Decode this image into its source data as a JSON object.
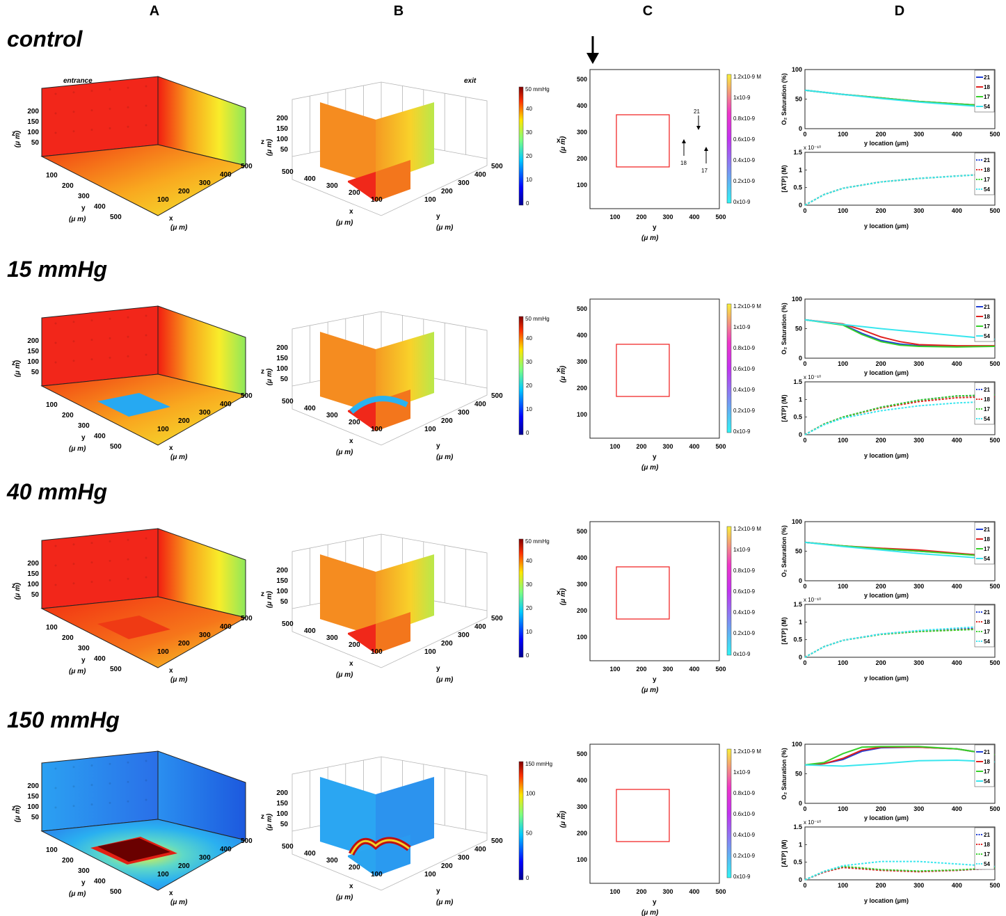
{
  "columns": [
    "A",
    "B",
    "C",
    "D"
  ],
  "rows": [
    {
      "label": "control",
      "stimulus": "none",
      "po2_cbar": {
        "max_label": "50 mmHg",
        "ticks": [
          "40",
          "30",
          "20",
          "10",
          "0"
        ]
      }
    },
    {
      "label": "15 mmHg",
      "stimulus": "low",
      "po2_cbar": {
        "max_label": "50 mmHg",
        "ticks": [
          "40",
          "30",
          "20",
          "10",
          "0"
        ]
      }
    },
    {
      "label": "40 mmHg",
      "stimulus": "mid",
      "po2_cbar": {
        "max_label": "50 mmHg",
        "ticks": [
          "40",
          "30",
          "20",
          "10",
          "0"
        ]
      }
    },
    {
      "label": "150 mmHg",
      "stimulus": "high",
      "po2_cbar": {
        "max_label": "150 mmHg",
        "ticks": [
          "100",
          "50",
          "0"
        ]
      }
    }
  ],
  "panel_a": {
    "entrance_label": "entrance",
    "z_ticks": [
      "200",
      "150",
      "100",
      "50"
    ],
    "y_ticks": [
      "100",
      "200",
      "300",
      "400",
      "500"
    ],
    "x_ticks": [
      "100",
      "200",
      "300",
      "400",
      "500"
    ],
    "z_label": "z",
    "y_label": "y",
    "x_label": "x",
    "unit_label": "(μ m)"
  },
  "panel_b": {
    "exit_label": "exit",
    "z_ticks": [
      "200",
      "150",
      "100",
      "50"
    ],
    "x_ticks": [
      "500",
      "400",
      "300",
      "200",
      "100"
    ],
    "y_ticks": [
      "100",
      "200",
      "300",
      "400",
      "500"
    ],
    "z_label": "z",
    "x_label": "x",
    "y_label": "y",
    "unit_label": "(μ m)"
  },
  "panel_c": {
    "x_ticks": [
      "500",
      "400",
      "300",
      "200",
      "100"
    ],
    "y_ticks": [
      "100",
      "200",
      "300",
      "400",
      "500"
    ],
    "x_label": "x",
    "y_label": "y",
    "unit_label": "(μ m)",
    "cbar_ticks": [
      "1.2x10-9 M",
      "1x10-9",
      "0.8x10-9",
      "0.6x10-9",
      "0.4x10-9",
      "0.2x10-9",
      "0x10-9"
    ],
    "vessel_labels": [
      "21",
      "18",
      "17"
    ]
  },
  "panel_d": {
    "o2_ylabel": "O₂ Saturation (%)",
    "atp_ylabel": "[ATP] (M)",
    "xlabel": "y location (μm)",
    "exponent": "x 10⁻¹⁰",
    "legend": [
      "21",
      "18",
      "17",
      "54"
    ],
    "o2_yticks": [
      "100",
      "50",
      "0"
    ],
    "atp_yticks": [
      "1.5",
      "1",
      "0.5",
      "0"
    ],
    "xticks": [
      "0",
      "100",
      "200",
      "300",
      "400",
      "500"
    ]
  },
  "chart_data": [
    {
      "type": "line",
      "title": "control — O₂ Saturation",
      "xlabel": "y location (μm)",
      "ylabel": "O₂ Saturation (%)",
      "xlim": [
        0,
        500
      ],
      "ylim": [
        0,
        100
      ],
      "series": [
        {
          "name": "21",
          "color": "#1f3fd6",
          "x": [
            0,
            100,
            200,
            300,
            450
          ],
          "y": [
            65,
            58,
            52,
            46,
            40
          ]
        },
        {
          "name": "18",
          "color": "#e0201e",
          "x": [
            0,
            100,
            200,
            300,
            450
          ],
          "y": [
            65,
            58,
            52,
            46,
            40
          ]
        },
        {
          "name": "17",
          "color": "#36d02a",
          "x": [
            0,
            100,
            200,
            300,
            450
          ],
          "y": [
            65,
            58,
            52,
            46,
            40
          ]
        },
        {
          "name": "54",
          "color": "#38e6ee",
          "x": [
            0,
            100,
            200,
            300,
            450
          ],
          "y": [
            65,
            58,
            51,
            45,
            38
          ]
        }
      ]
    },
    {
      "type": "line",
      "title": "control — [ATP]",
      "xlabel": "y location (μm)",
      "ylabel": "[ATP] (M)",
      "xlim": [
        0,
        500
      ],
      "ylim": [
        0,
        1.5
      ],
      "series": [
        {
          "name": "21",
          "color": "#1f3fd6",
          "x": [
            0,
            50,
            100,
            200,
            300,
            450
          ],
          "y": [
            0,
            0.3,
            0.48,
            0.66,
            0.76,
            0.86
          ]
        },
        {
          "name": "18",
          "color": "#e0201e",
          "x": [
            0,
            50,
            100,
            200,
            300,
            450
          ],
          "y": [
            0,
            0.3,
            0.48,
            0.66,
            0.76,
            0.86
          ]
        },
        {
          "name": "17",
          "color": "#36d02a",
          "x": [
            0,
            50,
            100,
            200,
            300,
            450
          ],
          "y": [
            0,
            0.3,
            0.48,
            0.66,
            0.76,
            0.86
          ]
        },
        {
          "name": "54",
          "color": "#38e6ee",
          "x": [
            0,
            50,
            100,
            200,
            300,
            450
          ],
          "y": [
            0,
            0.3,
            0.48,
            0.66,
            0.76,
            0.86
          ]
        }
      ]
    },
    {
      "type": "line",
      "title": "15 mmHg — O₂ Saturation",
      "xlabel": "y location (μm)",
      "ylabel": "O₂ Saturation (%)",
      "xlim": [
        0,
        500
      ],
      "ylim": [
        0,
        100
      ],
      "series": [
        {
          "name": "21",
          "color": "#1f3fd6",
          "x": [
            0,
            100,
            150,
            200,
            250,
            300,
            400,
            500
          ],
          "y": [
            65,
            57,
            42,
            30,
            24,
            21,
            20,
            20
          ]
        },
        {
          "name": "18",
          "color": "#e0201e",
          "x": [
            0,
            100,
            150,
            200,
            250,
            300,
            400,
            500
          ],
          "y": [
            65,
            58,
            48,
            36,
            28,
            23,
            21,
            21
          ]
        },
        {
          "name": "17",
          "color": "#36d02a",
          "x": [
            0,
            100,
            150,
            200,
            250,
            300,
            400,
            500
          ],
          "y": [
            65,
            56,
            40,
            28,
            22,
            20,
            19,
            20
          ]
        },
        {
          "name": "54",
          "color": "#38e6ee",
          "x": [
            0,
            100,
            200,
            300,
            400,
            500
          ],
          "y": [
            65,
            57,
            50,
            44,
            38,
            32
          ]
        }
      ]
    },
    {
      "type": "line",
      "title": "15 mmHg — [ATP]",
      "xlabel": "y location (μm)",
      "ylabel": "[ATP] (M)",
      "xlim": [
        0,
        500
      ],
      "ylim": [
        0,
        1.5
      ],
      "series": [
        {
          "name": "21",
          "color": "#1f3fd6",
          "x": [
            0,
            50,
            100,
            200,
            300,
            400,
            500
          ],
          "y": [
            0,
            0.3,
            0.5,
            0.78,
            0.98,
            1.1,
            1.12
          ]
        },
        {
          "name": "18",
          "color": "#e0201e",
          "x": [
            0,
            50,
            100,
            200,
            300,
            400,
            500
          ],
          "y": [
            0,
            0.3,
            0.5,
            0.76,
            0.94,
            1.05,
            1.08
          ]
        },
        {
          "name": "17",
          "color": "#36d02a",
          "x": [
            0,
            50,
            100,
            200,
            300,
            400,
            500
          ],
          "y": [
            0,
            0.3,
            0.5,
            0.78,
            0.98,
            1.1,
            1.13
          ]
        },
        {
          "name": "54",
          "color": "#38e6ee",
          "x": [
            0,
            50,
            100,
            200,
            300,
            400,
            500
          ],
          "y": [
            0,
            0.28,
            0.47,
            0.68,
            0.82,
            0.9,
            0.95
          ]
        }
      ]
    },
    {
      "type": "line",
      "title": "40 mmHg — O₂ Saturation",
      "xlabel": "y location (μm)",
      "ylabel": "O₂ Saturation (%)",
      "xlim": [
        0,
        500
      ],
      "ylim": [
        0,
        100
      ],
      "series": [
        {
          "name": "21",
          "color": "#1f3fd6",
          "x": [
            0,
            100,
            200,
            300,
            450
          ],
          "y": [
            65,
            59,
            54,
            50,
            44
          ]
        },
        {
          "name": "18",
          "color": "#e0201e",
          "x": [
            0,
            100,
            200,
            300,
            450
          ],
          "y": [
            65,
            59,
            55,
            52,
            44
          ]
        },
        {
          "name": "17",
          "color": "#36d02a",
          "x": [
            0,
            100,
            200,
            300,
            450
          ],
          "y": [
            65,
            59,
            54,
            50,
            43
          ]
        },
        {
          "name": "54",
          "color": "#38e6ee",
          "x": [
            0,
            100,
            200,
            300,
            450
          ],
          "y": [
            65,
            58,
            52,
            46,
            39
          ]
        }
      ]
    },
    {
      "type": "line",
      "title": "40 mmHg — [ATP]",
      "xlabel": "y location (μm)",
      "ylabel": "[ATP] (M)",
      "xlim": [
        0,
        500
      ],
      "ylim": [
        0,
        1.5
      ],
      "series": [
        {
          "name": "21",
          "color": "#1f3fd6",
          "x": [
            0,
            50,
            100,
            200,
            300,
            450
          ],
          "y": [
            0,
            0.3,
            0.48,
            0.66,
            0.75,
            0.82
          ]
        },
        {
          "name": "18",
          "color": "#e0201e",
          "x": [
            0,
            50,
            100,
            200,
            300,
            450
          ],
          "y": [
            0,
            0.3,
            0.48,
            0.65,
            0.73,
            0.8
          ]
        },
        {
          "name": "17",
          "color": "#36d02a",
          "x": [
            0,
            50,
            100,
            200,
            300,
            450
          ],
          "y": [
            0,
            0.3,
            0.48,
            0.65,
            0.73,
            0.79
          ]
        },
        {
          "name": "54",
          "color": "#38e6ee",
          "x": [
            0,
            50,
            100,
            200,
            300,
            450
          ],
          "y": [
            0,
            0.3,
            0.48,
            0.66,
            0.76,
            0.86
          ]
        }
      ]
    },
    {
      "type": "line",
      "title": "150 mmHg — O₂ Saturation",
      "xlabel": "y location (μm)",
      "ylabel": "O₂ Saturation (%)",
      "xlim": [
        0,
        500
      ],
      "ylim": [
        0,
        100
      ],
      "series": [
        {
          "name": "21",
          "color": "#1f3fd6",
          "x": [
            0,
            50,
            100,
            150,
            200,
            300,
            400,
            500
          ],
          "y": [
            65,
            67,
            74,
            88,
            94,
            95,
            92,
            82
          ]
        },
        {
          "name": "18",
          "color": "#e0201e",
          "x": [
            0,
            50,
            100,
            150,
            200,
            300,
            400,
            500
          ],
          "y": [
            65,
            67,
            76,
            90,
            95,
            95,
            92,
            82
          ]
        },
        {
          "name": "17",
          "color": "#36d02a",
          "x": [
            0,
            50,
            100,
            150,
            200,
            300,
            400,
            500
          ],
          "y": [
            65,
            69,
            84,
            95,
            96,
            96,
            92,
            82
          ]
        },
        {
          "name": "54",
          "color": "#38e6ee",
          "x": [
            0,
            100,
            200,
            300,
            400,
            500
          ],
          "y": [
            65,
            63,
            67,
            72,
            73,
            70
          ]
        }
      ]
    },
    {
      "type": "line",
      "title": "150 mmHg — [ATP]",
      "xlabel": "y location (μm)",
      "ylabel": "[ATP] (M)",
      "xlim": [
        0,
        500
      ],
      "ylim": [
        0,
        1.5
      ],
      "series": [
        {
          "name": "21",
          "color": "#1f3fd6",
          "x": [
            0,
            50,
            100,
            150,
            200,
            300,
            400,
            500
          ],
          "y": [
            0,
            0.22,
            0.36,
            0.32,
            0.28,
            0.24,
            0.27,
            0.33
          ]
        },
        {
          "name": "18",
          "color": "#e0201e",
          "x": [
            0,
            50,
            100,
            150,
            200,
            300,
            400,
            500
          ],
          "y": [
            0,
            0.22,
            0.35,
            0.31,
            0.27,
            0.23,
            0.27,
            0.33
          ]
        },
        {
          "name": "17",
          "color": "#36d02a",
          "x": [
            0,
            50,
            100,
            150,
            200,
            300,
            400,
            500
          ],
          "y": [
            0,
            0.24,
            0.38,
            0.34,
            0.29,
            0.25,
            0.28,
            0.34
          ]
        },
        {
          "name": "54",
          "color": "#38e6ee",
          "x": [
            0,
            50,
            100,
            200,
            300,
            400,
            500
          ],
          "y": [
            0,
            0.24,
            0.4,
            0.52,
            0.52,
            0.45,
            0.38
          ]
        }
      ]
    }
  ]
}
